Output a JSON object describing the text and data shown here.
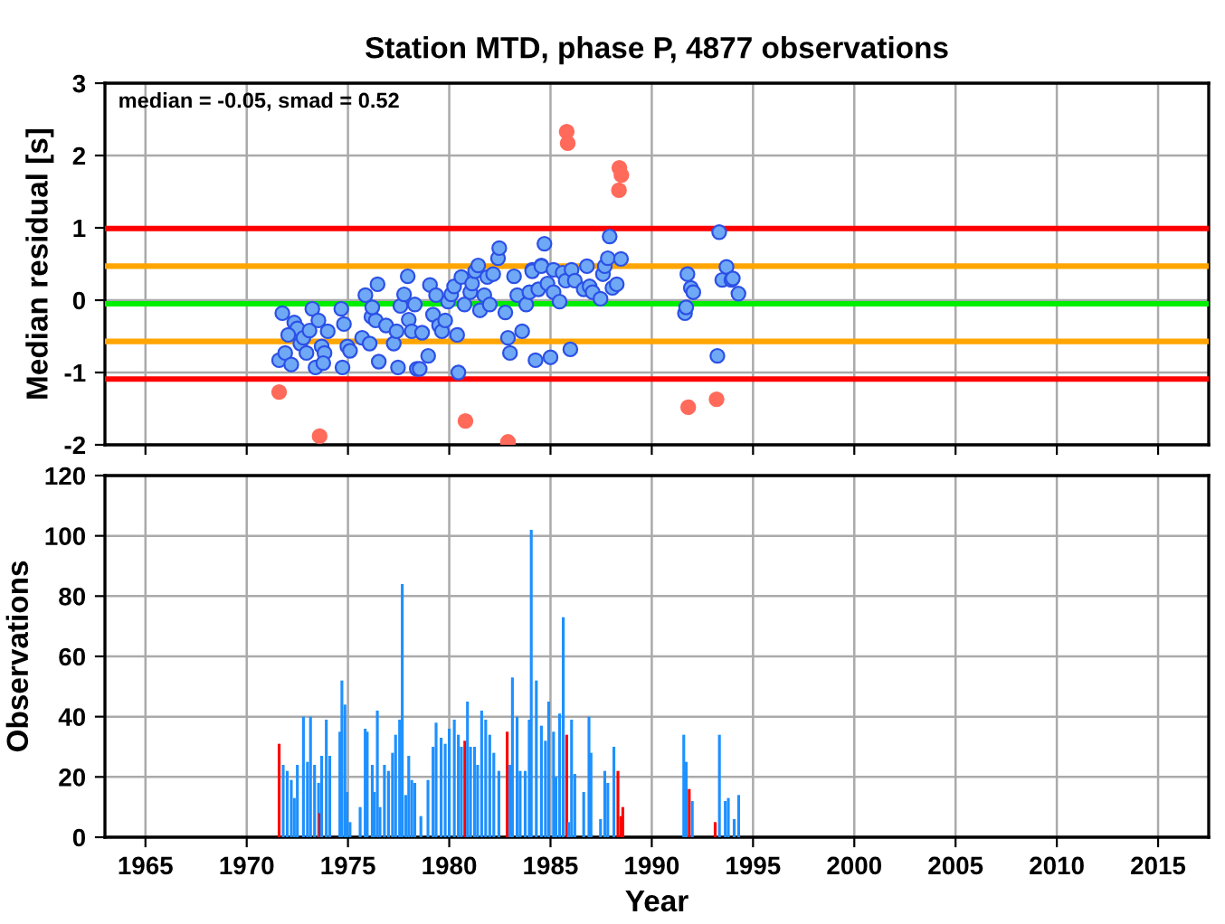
{
  "chart_data": [
    {
      "type": "scatter",
      "title": "Station MTD, phase P, 4877 observations",
      "ylabel": "Median residual [s]",
      "annotations": [
        "median = -0.05, smad = 0.52"
      ],
      "xlim": [
        1963,
        2017.5
      ],
      "xticks": [
        1965,
        1970,
        1975,
        1980,
        1985,
        1990,
        1995,
        2000,
        2005,
        2010,
        2015
      ],
      "ylim": [
        -2,
        3
      ],
      "yticks": [
        -2,
        -1,
        0,
        1,
        2,
        3
      ],
      "grid": true,
      "tick_labels": "y",
      "marker": "circle",
      "ref_lines": [
        {
          "axis": "y",
          "value": 0.99,
          "color": "#ff0000"
        },
        {
          "axis": "y",
          "value": -1.09,
          "color": "#ff0000"
        },
        {
          "axis": "y",
          "value": 0.47,
          "color": "#ffa500"
        },
        {
          "axis": "y",
          "value": -0.57,
          "color": "#ffa500"
        },
        {
          "axis": "y",
          "value": -0.05,
          "color": "#00ee00"
        }
      ],
      "series": [
        {
          "color": "#6fa8f5",
          "x": [
            1971.76,
            1971.6,
            1971.9,
            1972.2,
            1972.35,
            1972.5,
            1972.05,
            1972.65,
            1972.8,
            1973.1,
            1972.95,
            1973.24,
            1973.4,
            1973.54,
            1973.7,
            1973.84,
            1973.78,
            1974.0,
            1974.67,
            1974.8,
            1974.73,
            1974.97,
            1975.1,
            1975.7,
            1975.86,
            1976.07,
            1976.16,
            1976.37,
            1976.46,
            1976.52,
            1976.2,
            1976.88,
            1977.26,
            1977.4,
            1977.47,
            1977.59,
            1977.77,
            1977.95,
            1978.0,
            1978.15,
            1978.3,
            1978.4,
            1978.54,
            1978.66,
            1978.96,
            1979.05,
            1979.2,
            1979.35,
            1979.5,
            1979.64,
            1979.8,
            1979.94,
            1980.1,
            1980.24,
            1980.39,
            1980.45,
            1980.6,
            1980.75,
            1981.04,
            1981.13,
            1981.28,
            1981.43,
            1981.52,
            1981.73,
            1981.88,
            1982.0,
            1982.17,
            1982.41,
            1982.47,
            1982.77,
            1982.9,
            1983.0,
            1983.2,
            1983.36,
            1983.6,
            1983.8,
            1983.96,
            1984.1,
            1984.26,
            1984.4,
            1984.55,
            1984.7,
            1984.85,
            1985.0,
            1984.1,
            1984.55,
            1985.15,
            1985.15,
            1985.45,
            1985.6,
            1985.75,
            1985.98,
            1986.04,
            1986.2,
            1986.64,
            1986.8,
            1986.93,
            1987.08,
            1987.47,
            1987.59,
            1987.68,
            1987.83,
            1987.92,
            1988.06,
            1988.27,
            1988.48,
            1991.64,
            1991.7,
            1991.76,
            1991.93,
            1992.05,
            1993.24,
            1993.33,
            1993.48,
            1993.69,
            1993.93,
            1994.0,
            1994.28
          ],
          "values": [
            -0.18,
            -0.83,
            -0.73,
            -0.89,
            -0.31,
            -0.39,
            -0.48,
            -0.6,
            -0.52,
            -0.42,
            -0.73,
            -0.12,
            -0.93,
            -0.28,
            -0.64,
            -0.73,
            -0.87,
            -0.43,
            -0.12,
            -0.33,
            -0.93,
            -0.64,
            -0.7,
            -0.52,
            0.07,
            -0.6,
            -0.23,
            -0.28,
            0.22,
            -0.85,
            -0.1,
            -0.35,
            -0.6,
            -0.43,
            -0.93,
            -0.08,
            0.08,
            0.33,
            -0.27,
            -0.43,
            -0.06,
            -0.95,
            -0.95,
            -0.45,
            -0.77,
            0.21,
            -0.2,
            0.07,
            -0.35,
            -0.43,
            -0.28,
            -0.02,
            0.08,
            0.19,
            -0.48,
            -1.0,
            0.32,
            -0.06,
            0.11,
            0.23,
            0.4,
            0.48,
            -0.14,
            0.07,
            0.32,
            -0.06,
            0.36,
            0.58,
            0.72,
            -0.17,
            -0.52,
            -0.73,
            0.33,
            0.07,
            -0.43,
            -0.06,
            0.11,
            0.42,
            -0.83,
            0.15,
            0.48,
            0.78,
            0.23,
            -0.79,
            0.4,
            0.47,
            0.42,
            0.11,
            -0.02,
            0.38,
            0.27,
            -0.68,
            0.42,
            0.27,
            0.15,
            0.47,
            0.19,
            0.11,
            0.02,
            0.36,
            0.47,
            0.58,
            0.88,
            0.17,
            0.22,
            0.57,
            -0.18,
            -0.1,
            0.36,
            0.17,
            0.11,
            -0.77,
            0.94,
            0.28,
            0.46,
            0.28,
            0.3,
            0.09
          ]
        },
        {
          "color": "#ff6a5a",
          "x": [
            1971.6,
            1973.6,
            1980.8,
            1982.9,
            1985.8,
            1985.85,
            1988.4,
            1988.5,
            1988.38,
            1991.8,
            1993.2
          ],
          "values": [
            -1.27,
            -1.88,
            -1.67,
            -1.96,
            2.33,
            2.17,
            1.83,
            1.73,
            1.52,
            -1.48,
            -1.37
          ]
        }
      ]
    },
    {
      "type": "bar",
      "ylabel": "Observations",
      "xlabel": "Year",
      "xlim": [
        1963,
        2017.5
      ],
      "xticks": [
        1965,
        1970,
        1975,
        1980,
        1985,
        1990,
        1995,
        2000,
        2005,
        2010,
        2015
      ],
      "ylim": [
        0,
        120
      ],
      "yticks": [
        0,
        20,
        40,
        60,
        80,
        100,
        120
      ],
      "grid": true,
      "series": [
        {
          "x": [
            1971.6,
            1971.8,
            1972.0,
            1972.2,
            1972.35,
            1972.5,
            1972.8,
            1973.0,
            1973.15,
            1973.35,
            1973.55,
            1973.6,
            1973.7,
            1973.93,
            1974.1,
            1974.6,
            1974.7,
            1974.85,
            1974.95,
            1975.1,
            1975.6,
            1975.85,
            1975.95,
            1976.2,
            1976.3,
            1976.45,
            1976.58,
            1976.8,
            1977.0,
            1977.2,
            1977.35,
            1977.55,
            1977.68,
            1977.85,
            1978.0,
            1978.15,
            1978.3,
            1978.6,
            1978.95,
            1979.2,
            1979.35,
            1979.6,
            1979.8,
            1980.0,
            1980.25,
            1980.45,
            1980.6,
            1980.77,
            1980.9,
            1981.05,
            1981.25,
            1981.4,
            1981.6,
            1981.8,
            1982.0,
            1982.2,
            1982.45,
            1982.86,
            1983.0,
            1983.12,
            1983.35,
            1983.5,
            1983.75,
            1983.95,
            1984.05,
            1984.3,
            1984.55,
            1984.75,
            1984.91,
            1985.15,
            1985.27,
            1985.45,
            1985.63,
            1985.8,
            1985.9,
            1986.04,
            1986.2,
            1986.64,
            1986.9,
            1987.0,
            1987.47,
            1987.68,
            1987.83,
            1988.13,
            1988.33,
            1988.48,
            1988.57,
            1991.58,
            1991.7,
            1991.85,
            1992.0,
            1993.13,
            1993.34,
            1993.63,
            1993.78,
            1994.07,
            1994.29
          ],
          "values": [
            31,
            24,
            22,
            19,
            13,
            24,
            40,
            25,
            40,
            24,
            18,
            8,
            27,
            39,
            27,
            35,
            52,
            44,
            15,
            5,
            10,
            36,
            35,
            24,
            15,
            42,
            10,
            24,
            22,
            28,
            34,
            39,
            84,
            14,
            27,
            19,
            18,
            7,
            19,
            30,
            38,
            33,
            31,
            36,
            39,
            34,
            30,
            32,
            45,
            30,
            30,
            24,
            42,
            39,
            34,
            28,
            22,
            35,
            24,
            53,
            40,
            22,
            22,
            39,
            102,
            52,
            37,
            32,
            45,
            35,
            20,
            41,
            73,
            34,
            5,
            39,
            21,
            15,
            40,
            28,
            6,
            22,
            18,
            30,
            22,
            7,
            10,
            34,
            25,
            16,
            12,
            5,
            34,
            12,
            13,
            6,
            14
          ],
          "colors": [
            "#ff0000",
            "#1e90ff",
            "#1e90ff",
            "#1e90ff",
            "#1e90ff",
            "#1e90ff",
            "#1e90ff",
            "#1e90ff",
            "#1e90ff",
            "#1e90ff",
            "#1e90ff",
            "#ff0000",
            "#1e90ff",
            "#1e90ff",
            "#1e90ff",
            "#1e90ff",
            "#1e90ff",
            "#1e90ff",
            "#1e90ff",
            "#1e90ff",
            "#1e90ff",
            "#1e90ff",
            "#1e90ff",
            "#1e90ff",
            "#1e90ff",
            "#1e90ff",
            "#1e90ff",
            "#1e90ff",
            "#1e90ff",
            "#1e90ff",
            "#1e90ff",
            "#1e90ff",
            "#1e90ff",
            "#1e90ff",
            "#1e90ff",
            "#1e90ff",
            "#1e90ff",
            "#1e90ff",
            "#1e90ff",
            "#1e90ff",
            "#1e90ff",
            "#1e90ff",
            "#1e90ff",
            "#1e90ff",
            "#1e90ff",
            "#1e90ff",
            "#1e90ff",
            "#ff0000",
            "#1e90ff",
            "#1e90ff",
            "#1e90ff",
            "#1e90ff",
            "#1e90ff",
            "#1e90ff",
            "#1e90ff",
            "#1e90ff",
            "#1e90ff",
            "#ff0000",
            "#1e90ff",
            "#1e90ff",
            "#1e90ff",
            "#1e90ff",
            "#1e90ff",
            "#1e90ff",
            "#1e90ff",
            "#1e90ff",
            "#1e90ff",
            "#1e90ff",
            "#1e90ff",
            "#1e90ff",
            "#1e90ff",
            "#1e90ff",
            "#1e90ff",
            "#ff0000",
            "#1e90ff",
            "#1e90ff",
            "#1e90ff",
            "#1e90ff",
            "#1e90ff",
            "#1e90ff",
            "#1e90ff",
            "#1e90ff",
            "#1e90ff",
            "#1e90ff",
            "#ff0000",
            "#ff0000",
            "#ff0000",
            "#1e90ff",
            "#1e90ff",
            "#ff0000",
            "#1e90ff",
            "#ff0000",
            "#1e90ff",
            "#1e90ff",
            "#1e90ff",
            "#1e90ff",
            "#1e90ff"
          ]
        }
      ]
    }
  ]
}
